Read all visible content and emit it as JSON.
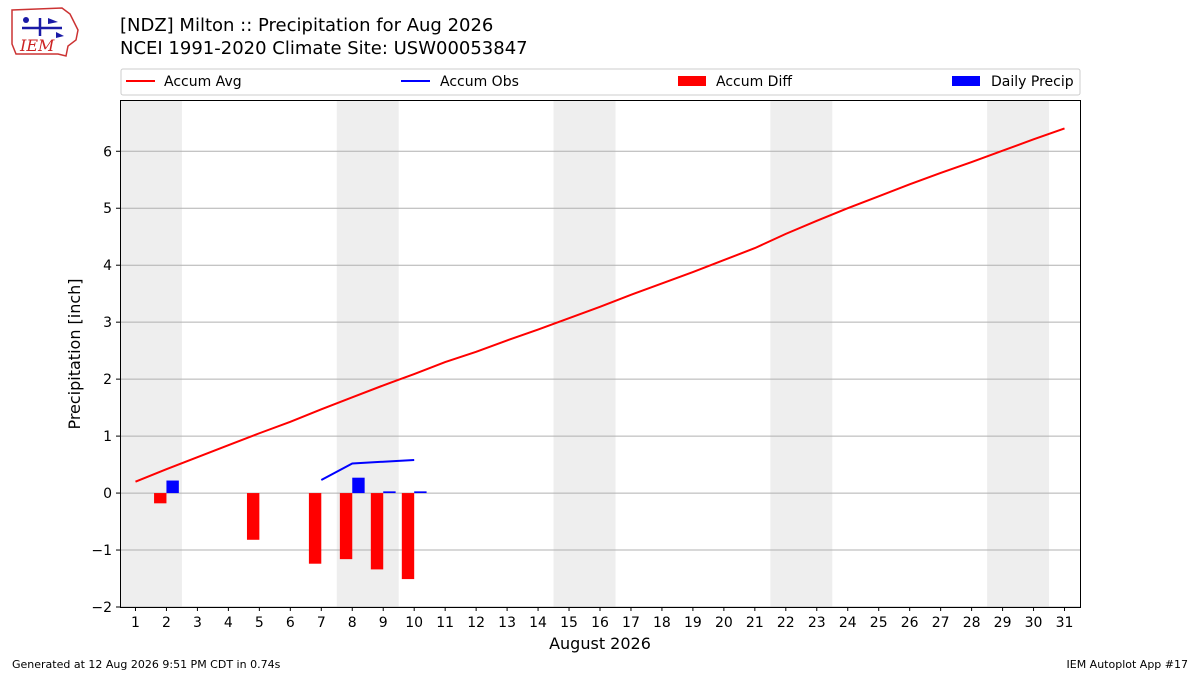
{
  "title_line1": "[NDZ] Milton :: Precipitation for Aug 2026",
  "title_line2": "NCEI 1991-2020 Climate Site: USW00053847",
  "logo_text": "IEM",
  "footer_left": "Generated at 12 Aug 2026 9:51 PM CDT in 0.74s",
  "footer_right": "IEM Autoplot App #17",
  "colors": {
    "accum_avg": "#ff0000",
    "accum_obs": "#0000ff",
    "accum_diff": "#ff0000",
    "daily_precip": "#0000ff",
    "weekend_band": "#eeeeee",
    "grid": "#b0b0b0"
  },
  "chart_data": {
    "type": "line",
    "xlabel": "August 2026",
    "ylabel": "Precipitation [inch]",
    "xlim": [
      0.5,
      31.5
    ],
    "ylim": [
      -2.0,
      6.9
    ],
    "x_ticks": [
      1,
      2,
      3,
      4,
      5,
      6,
      7,
      8,
      9,
      10,
      11,
      12,
      13,
      14,
      15,
      16,
      17,
      18,
      19,
      20,
      21,
      22,
      23,
      24,
      25,
      26,
      27,
      28,
      29,
      30,
      31
    ],
    "y_ticks": [
      -2,
      -1,
      0,
      1,
      2,
      3,
      4,
      5,
      6
    ],
    "y_tick_labels": [
      "−2",
      "−1",
      "0",
      "1",
      "2",
      "3",
      "4",
      "5",
      "6"
    ],
    "grid": "y",
    "legend_position": "top",
    "weekend_bands": [
      [
        0.5,
        2.5
      ],
      [
        7.5,
        9.5
      ],
      [
        14.5,
        16.5
      ],
      [
        21.5,
        23.5
      ],
      [
        28.5,
        30.5
      ]
    ],
    "series": [
      {
        "name": "Accum Avg",
        "kind": "line",
        "color": "#ff0000",
        "x": [
          1,
          2,
          3,
          4,
          5,
          6,
          7,
          8,
          9,
          10,
          11,
          12,
          13,
          14,
          15,
          16,
          17,
          18,
          19,
          20,
          21,
          22,
          23,
          24,
          25,
          26,
          27,
          28,
          29,
          30,
          31
        ],
        "values": [
          0.2,
          0.42,
          0.63,
          0.84,
          1.05,
          1.25,
          1.47,
          1.68,
          1.89,
          2.09,
          2.3,
          2.48,
          2.68,
          2.87,
          3.07,
          3.27,
          3.48,
          3.68,
          3.88,
          4.09,
          4.3,
          4.55,
          4.78,
          5.0,
          5.21,
          5.42,
          5.62,
          5.81,
          6.01,
          6.21,
          6.4
        ]
      },
      {
        "name": "Accum Obs",
        "kind": "line",
        "color": "#0000ff",
        "x": [
          7,
          8,
          9,
          10
        ],
        "values": [
          0.23,
          0.52,
          0.55,
          0.58
        ]
      },
      {
        "name": "Accum Diff",
        "kind": "bar",
        "color": "#ff0000",
        "offset": -0.2,
        "x": [
          2,
          5,
          7,
          8,
          9,
          10
        ],
        "values": [
          -0.18,
          -0.82,
          -1.24,
          -1.16,
          -1.34,
          -1.51
        ]
      },
      {
        "name": "Daily Precip",
        "kind": "bar",
        "color": "#0000ff",
        "offset": 0.2,
        "x": [
          2,
          8,
          9,
          10
        ],
        "values": [
          0.22,
          0.27,
          0.03,
          0.03
        ]
      }
    ]
  }
}
